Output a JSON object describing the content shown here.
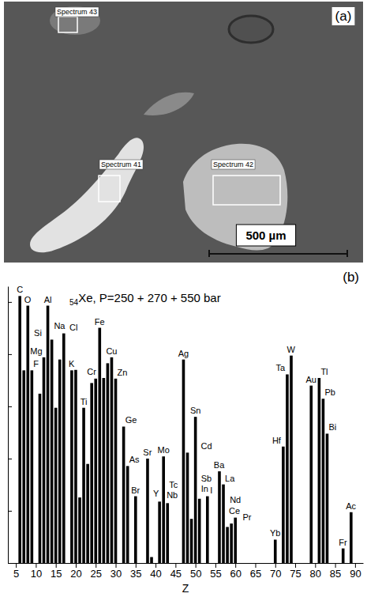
{
  "panel_labels": [
    "(a)",
    "(b)"
  ],
  "panel_a": {
    "spectra": [
      "Spectrum 43",
      "Spectrum 41",
      "Spectrum 42"
    ],
    "scale_bar": "500 µm"
  },
  "chart_data": {
    "type": "bar",
    "title_prefix": "54",
    "title": "Xe, P=250 + 270 + 550 bar",
    "x_label": "Z",
    "x": [
      6,
      7,
      8,
      9,
      11,
      12,
      13,
      14,
      15,
      16,
      17,
      19,
      20,
      21,
      22,
      23,
      24,
      25,
      26,
      27,
      28,
      29,
      30,
      32,
      33,
      35,
      38,
      39,
      41,
      42,
      43,
      47,
      48,
      49,
      50,
      51,
      53,
      56,
      57,
      58,
      59,
      60,
      70,
      72,
      73,
      74,
      79,
      81,
      82,
      83,
      87,
      89
    ],
    "labels": [
      "C",
      null,
      "O",
      "F",
      "Na",
      "Mg",
      "Al",
      "Si",
      null,
      null,
      "Cl",
      "K",
      null,
      null,
      "Ti",
      null,
      "Cr",
      null,
      "Fe",
      null,
      null,
      "Cu",
      "Zn",
      "Ge",
      "As",
      "Br",
      "Sr",
      "Y",
      "Nb",
      "Mo",
      "Tc",
      "Ag",
      "Cd",
      "In",
      "Sn",
      "Sb",
      "I",
      "Ba",
      "La",
      "Ce",
      "Pr",
      "Nd",
      "Yb",
      "Hf",
      "Ta",
      "W",
      "Au",
      "Tl",
      "Pb",
      "Bi",
      "Fr",
      "Ac"
    ],
    "values": [
      130000,
      4900,
      85000,
      4900,
      1750,
      8700,
      85000,
      19000,
      940,
      7900,
      25000,
      4900,
      5000,
      18,
      940,
      79,
      2800,
      3400,
      32000,
      3500,
      6700,
      8700,
      3400,
      410,
      72,
      19,
      100,
      1.3,
      15,
      110,
      14,
      7900,
      130,
      7,
      630,
      17,
      19,
      57,
      32,
      4.9,
      5.7,
      7.4,
      2.8,
      170,
      4100,
      9400,
      2500,
      3500,
      1400,
      300,
      1.9,
      9.4
    ],
    "color": "#000000",
    "xlim": [
      3,
      92
    ],
    "xticks": [
      5,
      10,
      15,
      20,
      25,
      30,
      35,
      40,
      45,
      50,
      55,
      60,
      65,
      70,
      75,
      80,
      85,
      90
    ],
    "ylim": [
      1,
      200000
    ],
    "yticks": [
      1,
      10,
      100,
      1000,
      10000,
      100000
    ],
    "log": "y",
    "tick_labels": "x",
    "grid": false
  }
}
